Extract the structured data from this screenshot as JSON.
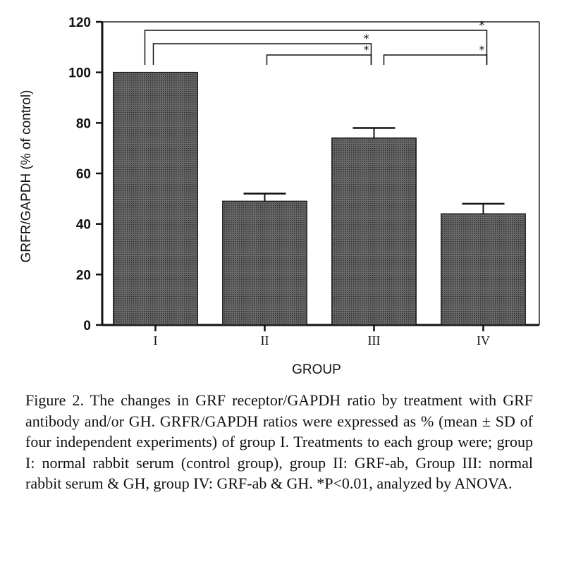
{
  "chart_data": {
    "type": "bar",
    "categories": [
      "I",
      "II",
      "III",
      "IV"
    ],
    "values": [
      100,
      49,
      74,
      44
    ],
    "error": [
      0,
      3,
      4,
      4
    ],
    "xlabel": "GROUP",
    "ylabel": "GRFR/GAPDH (% of control)",
    "ylim": [
      0,
      120
    ],
    "yticks": [
      0,
      20,
      40,
      60,
      80,
      100,
      120
    ],
    "bar_color": "#5a5a5a",
    "grid": false,
    "significance_marker": "*",
    "significance": [
      {
        "from": "I",
        "to": "IV"
      },
      {
        "from": "I",
        "to": "III"
      },
      {
        "from": "II",
        "to": "III"
      },
      {
        "from": "III",
        "to": "IV"
      }
    ]
  },
  "caption": "Figure 2. The changes in GRF receptor/GAPDH ratio by treatment with GRF antibody and/or GH. GRFR/GAPDH ratios were expressed as % (mean ± SD of four independent experiments) of group I. Treatments to each group were; group I: normal rabbit serum (control group), group II: GRF-ab, Group III: normal rabbit serum & GH, group IV: GRF-ab & GH. *P<0.01, analyzed by ANOVA."
}
